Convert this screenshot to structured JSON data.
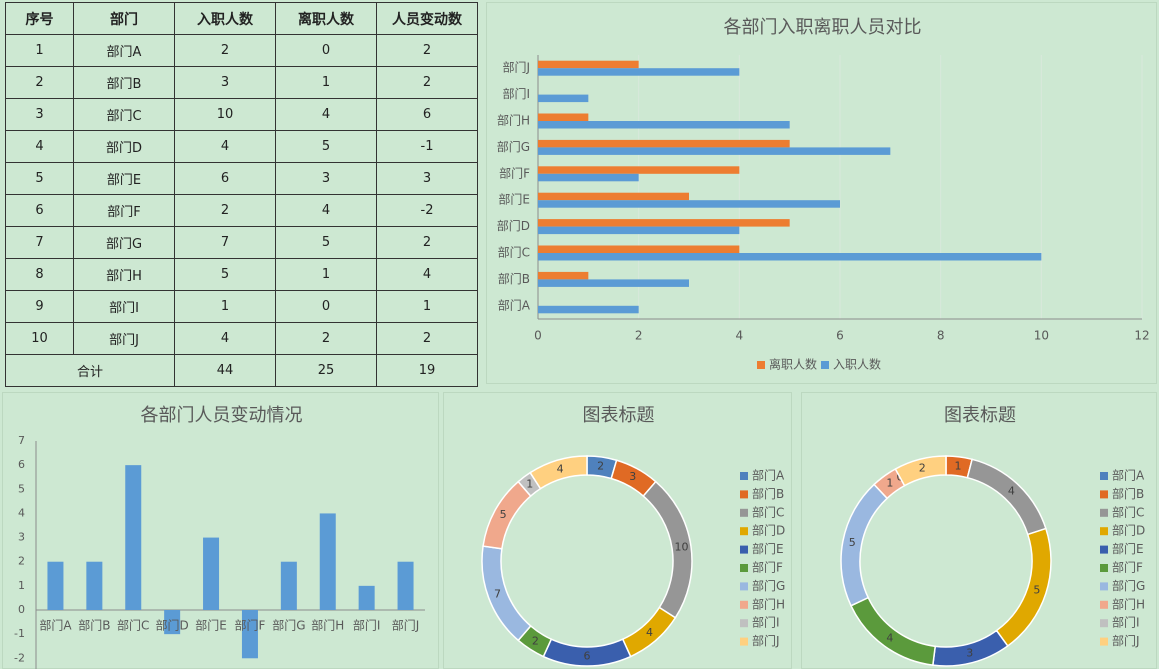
{
  "table": {
    "headers": [
      "序号",
      "部门",
      "入职人数",
      "离职人数",
      "人员变动数"
    ],
    "rows": [
      [
        "1",
        "部门A",
        "2",
        "0",
        "2"
      ],
      [
        "2",
        "部门B",
        "3",
        "1",
        "2"
      ],
      [
        "3",
        "部门C",
        "10",
        "4",
        "6"
      ],
      [
        "4",
        "部门D",
        "4",
        "5",
        "-1"
      ],
      [
        "5",
        "部门E",
        "6",
        "3",
        "3"
      ],
      [
        "6",
        "部门F",
        "2",
        "4",
        "-2"
      ],
      [
        "7",
        "部门G",
        "7",
        "5",
        "2"
      ],
      [
        "8",
        "部门H",
        "5",
        "1",
        "4"
      ],
      [
        "9",
        "部门I",
        "1",
        "0",
        "1"
      ],
      [
        "10",
        "部门J",
        "4",
        "2",
        "2"
      ]
    ],
    "total": [
      "合计",
      "44",
      "25",
      "19"
    ]
  },
  "colors": {
    "blue": "#5b9bd5",
    "orange": "#ed7d31",
    "pie": [
      "#4f81bd",
      "#e06a24",
      "#969696",
      "#e0a800",
      "#3a5fad",
      "#5b9a3c",
      "#9ab8e0",
      "#f0a88c",
      "#c0c0c0",
      "#ffd080"
    ]
  },
  "chart_data": [
    {
      "type": "bar",
      "orientation": "horizontal",
      "title": "各部门入职离职人员对比",
      "categories": [
        "部门A",
        "部门B",
        "部门C",
        "部门D",
        "部门E",
        "部门F",
        "部门G",
        "部门H",
        "部门I",
        "部门J"
      ],
      "series": [
        {
          "name": "入职人数",
          "values": [
            2,
            3,
            10,
            4,
            6,
            2,
            7,
            5,
            1,
            4
          ]
        },
        {
          "name": "离职人数",
          "values": [
            0,
            1,
            4,
            5,
            3,
            4,
            5,
            1,
            0,
            2
          ]
        }
      ],
      "xlim": [
        0,
        12
      ],
      "xticks": [
        "0",
        "2",
        "4",
        "6",
        "8",
        "10",
        "12"
      ],
      "legend": [
        "离职人数",
        "入职人数"
      ],
      "legend_position": "bottom",
      "grid": true
    },
    {
      "type": "bar",
      "title": "各部门人员变动情况",
      "categories": [
        "部门A",
        "部门B",
        "部门C",
        "部门D",
        "部门E",
        "部门F",
        "部门G",
        "部门H",
        "部门I",
        "部门J"
      ],
      "values": [
        2,
        2,
        6,
        -1,
        3,
        -2,
        2,
        4,
        1,
        2
      ],
      "ylim": [
        -2,
        7
      ],
      "yticks": [
        "7",
        "6",
        "5",
        "4",
        "3",
        "2",
        "1",
        "0",
        "-1",
        "-2"
      ]
    },
    {
      "type": "pie",
      "style": "donut",
      "title": "图表标题",
      "categories": [
        "部门A",
        "部门B",
        "部门C",
        "部门D",
        "部门E",
        "部门F",
        "部门G",
        "部门H",
        "部门I",
        "部门J"
      ],
      "values": [
        2,
        3,
        10,
        4,
        6,
        2,
        7,
        5,
        1,
        4
      ],
      "legend_position": "right"
    },
    {
      "type": "pie",
      "style": "donut",
      "title": "图表标题",
      "categories": [
        "部门A",
        "部门B",
        "部门C",
        "部门D",
        "部门E",
        "部门F",
        "部门G",
        "部门H",
        "部门I",
        "部门J"
      ],
      "values": [
        0,
        1,
        4,
        5,
        3,
        4,
        5,
        1,
        0,
        2
      ],
      "legend_position": "right"
    }
  ]
}
